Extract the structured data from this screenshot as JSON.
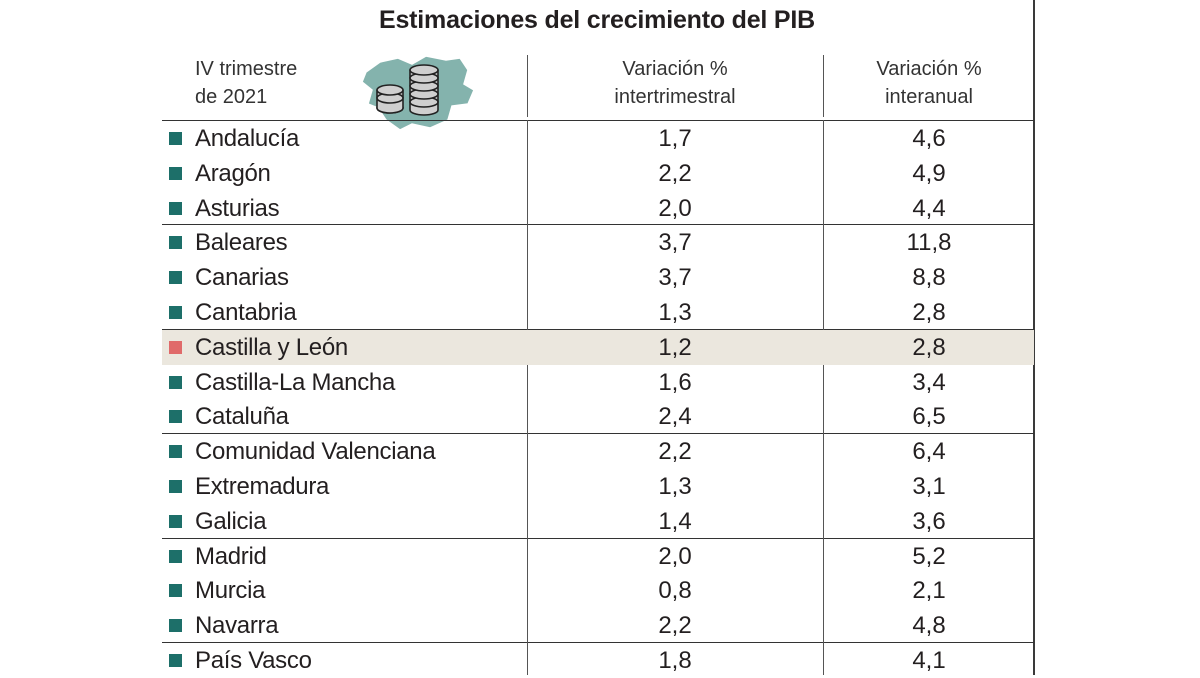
{
  "chart_data": {
    "type": "table",
    "title": "Estimaciones del crecimiento del PIB",
    "header": {
      "period": [
        "IV trimestre",
        "de 2021"
      ],
      "col1": [
        "Variación %",
        "intertrimestral"
      ],
      "col2": [
        "Variación %",
        "interanual"
      ]
    },
    "rows": [
      {
        "name": "Andalucía",
        "intertrimestral": "1,7",
        "interanual": "4,6"
      },
      {
        "name": "Aragón",
        "intertrimestral": "2,2",
        "interanual": "4,9"
      },
      {
        "name": "Asturias",
        "intertrimestral": "2,0",
        "interanual": "4,4"
      },
      {
        "name": "Baleares",
        "intertrimestral": "3,7",
        "interanual": "11,8"
      },
      {
        "name": "Canarias",
        "intertrimestral": "3,7",
        "interanual": "8,8"
      },
      {
        "name": "Cantabria",
        "intertrimestral": "1,3",
        "interanual": "2,8"
      },
      {
        "name": "Castilla y León",
        "intertrimestral": "1,2",
        "interanual": "2,8",
        "highlight": true
      },
      {
        "name": "Castilla-La Mancha",
        "intertrimestral": "1,6",
        "interanual": "3,4"
      },
      {
        "name": "Cataluña",
        "intertrimestral": "2,4",
        "interanual": "6,5"
      },
      {
        "name": "Comunidad Valenciana",
        "intertrimestral": "2,2",
        "interanual": "6,4"
      },
      {
        "name": "Extremadura",
        "intertrimestral": "1,3",
        "interanual": "3,1"
      },
      {
        "name": "Galicia",
        "intertrimestral": "1,4",
        "interanual": "3,6"
      },
      {
        "name": "Madrid",
        "intertrimestral": "2,0",
        "interanual": "5,2"
      },
      {
        "name": "Murcia",
        "intertrimestral": "0,8",
        "interanual": "2,1"
      },
      {
        "name": "Navarra",
        "intertrimestral": "2,2",
        "interanual": "4,8"
      },
      {
        "name": "País Vasco",
        "intertrimestral": "1,8",
        "interanual": "4,1"
      }
    ]
  },
  "colors": {
    "marker": "#1d6f69",
    "marker_highlight": "#e06a6a",
    "highlight_row": "#ebe7de",
    "map_fill": "#84b3ad",
    "coin": "#bdbdbd"
  },
  "icons": {
    "header_illustration": "map-coins-icon"
  }
}
